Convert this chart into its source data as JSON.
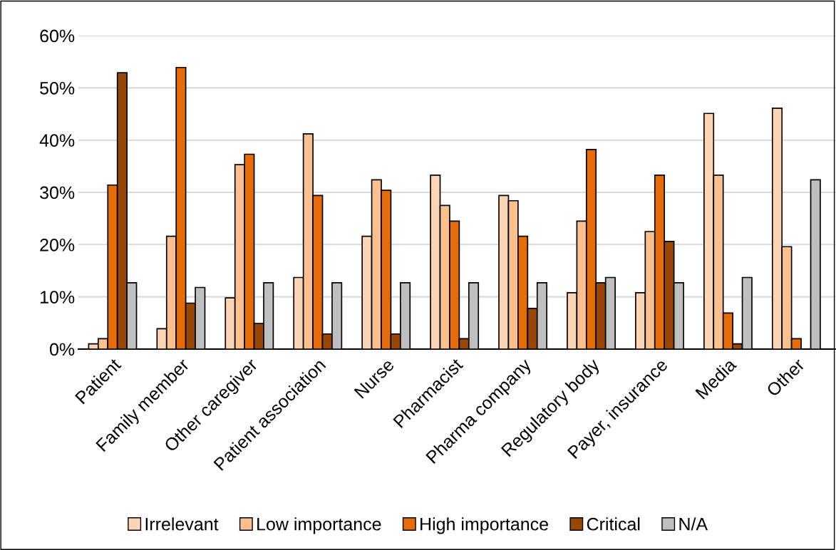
{
  "chart_data": {
    "type": "bar",
    "categories": [
      "Patient",
      "Family member",
      "Other caregiver",
      "Patient association",
      "Nurse",
      "Pharmacist",
      "Pharma company",
      "Regulatory body",
      "Payer, insurance",
      "Media",
      "Other"
    ],
    "series": [
      {
        "name": "Irrelevant",
        "color": "#fcd5b4",
        "values": [
          1,
          3.9,
          9.8,
          13.7,
          21.6,
          33.3,
          29.4,
          10.8,
          10.8,
          45.1,
          46.1
        ]
      },
      {
        "name": "Low importance",
        "color": "#fac090",
        "values": [
          2,
          21.6,
          35.3,
          41.2,
          32.4,
          27.5,
          28.4,
          24.5,
          22.5,
          33.3,
          19.6
        ]
      },
      {
        "name": "High importance",
        "color": "#e46c0a",
        "values": [
          31.4,
          53.9,
          37.3,
          29.4,
          30.4,
          24.5,
          21.6,
          38.2,
          33.3,
          6.9,
          2
        ]
      },
      {
        "name": "Critical",
        "color": "#974706",
        "values": [
          52.9,
          8.8,
          4.9,
          2.9,
          2.9,
          2,
          7.8,
          12.7,
          20.6,
          1,
          null
        ]
      },
      {
        "name": "N/A",
        "color": "#bfbfbf",
        "values": [
          12.7,
          11.8,
          12.7,
          12.7,
          12.7,
          12.7,
          12.7,
          13.7,
          12.7,
          13.7,
          32.4
        ]
      }
    ],
    "ylim": [
      0,
      60
    ],
    "yticks": [
      {
        "value": 0,
        "label": "0%"
      },
      {
        "value": 10,
        "label": "10%"
      },
      {
        "value": 20,
        "label": "20%"
      },
      {
        "value": 30,
        "label": "30%"
      },
      {
        "value": 40,
        "label": "40%"
      },
      {
        "value": 50,
        "label": "50%"
      },
      {
        "value": 60,
        "label": "60%"
      }
    ],
    "grid": "y",
    "legend": "bottom"
  }
}
